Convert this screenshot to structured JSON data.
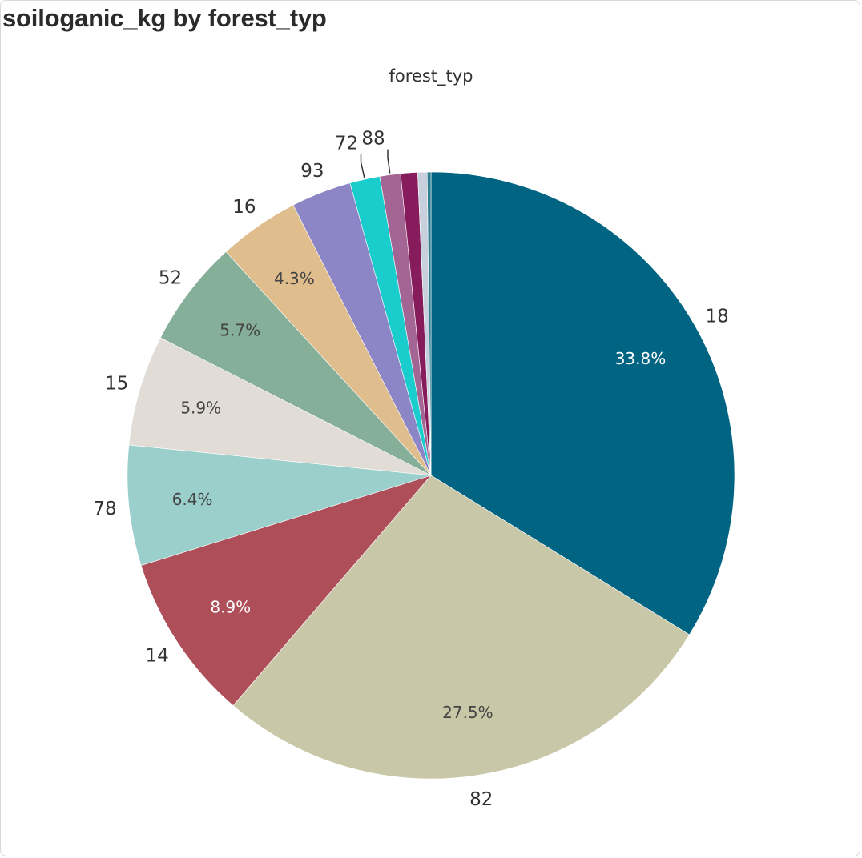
{
  "title": "soiloganic_kg by forest_typ",
  "chart_data": {
    "type": "pie",
    "legend_title": "forest_typ",
    "slices": [
      {
        "label": "18",
        "value": 33.8,
        "pct_label": "33.8%",
        "color": "#006482",
        "pct_color": "#ffffff"
      },
      {
        "label": "82",
        "value": 27.5,
        "pct_label": "27.5%",
        "color": "#c8c7a8",
        "pct_color": "#444444"
      },
      {
        "label": "14",
        "value": 8.9,
        "pct_label": "8.9%",
        "color": "#ad4e59",
        "pct_color": "#ffffff"
      },
      {
        "label": "78",
        "value": 6.4,
        "pct_label": "6.4%",
        "color": "#9acfcc",
        "pct_color": "#444444"
      },
      {
        "label": "15",
        "value": 5.9,
        "pct_label": "5.9%",
        "color": "#e2dcd7",
        "pct_color": "#444444"
      },
      {
        "label": "52",
        "value": 5.7,
        "pct_label": "5.7%",
        "color": "#86af99",
        "pct_color": "#444444"
      },
      {
        "label": "16",
        "value": 4.3,
        "pct_label": "4.3%",
        "color": "#dfbd8d",
        "pct_color": "#444444"
      },
      {
        "label": "93",
        "value": 3.2,
        "pct_label": "",
        "color": "#8c86c6",
        "pct_color": "#444444"
      },
      {
        "label": "72",
        "value": 1.6,
        "pct_label": "",
        "color": "#19cdcc",
        "pct_color": "#444444"
      },
      {
        "label": "88",
        "value": 1.1,
        "pct_label": "",
        "color": "#a36594",
        "pct_color": "#444444"
      },
      {
        "label": "",
        "value": 0.9,
        "pct_label": "",
        "color": "#861c5c",
        "pct_color": "#444444"
      },
      {
        "label": "",
        "value": 0.5,
        "pct_label": "",
        "color": "#c7d0dc",
        "pct_color": "#444444"
      },
      {
        "label": "",
        "value": 0.2,
        "pct_label": "",
        "color": "#2e7d90",
        "pct_color": "#444444"
      }
    ]
  }
}
